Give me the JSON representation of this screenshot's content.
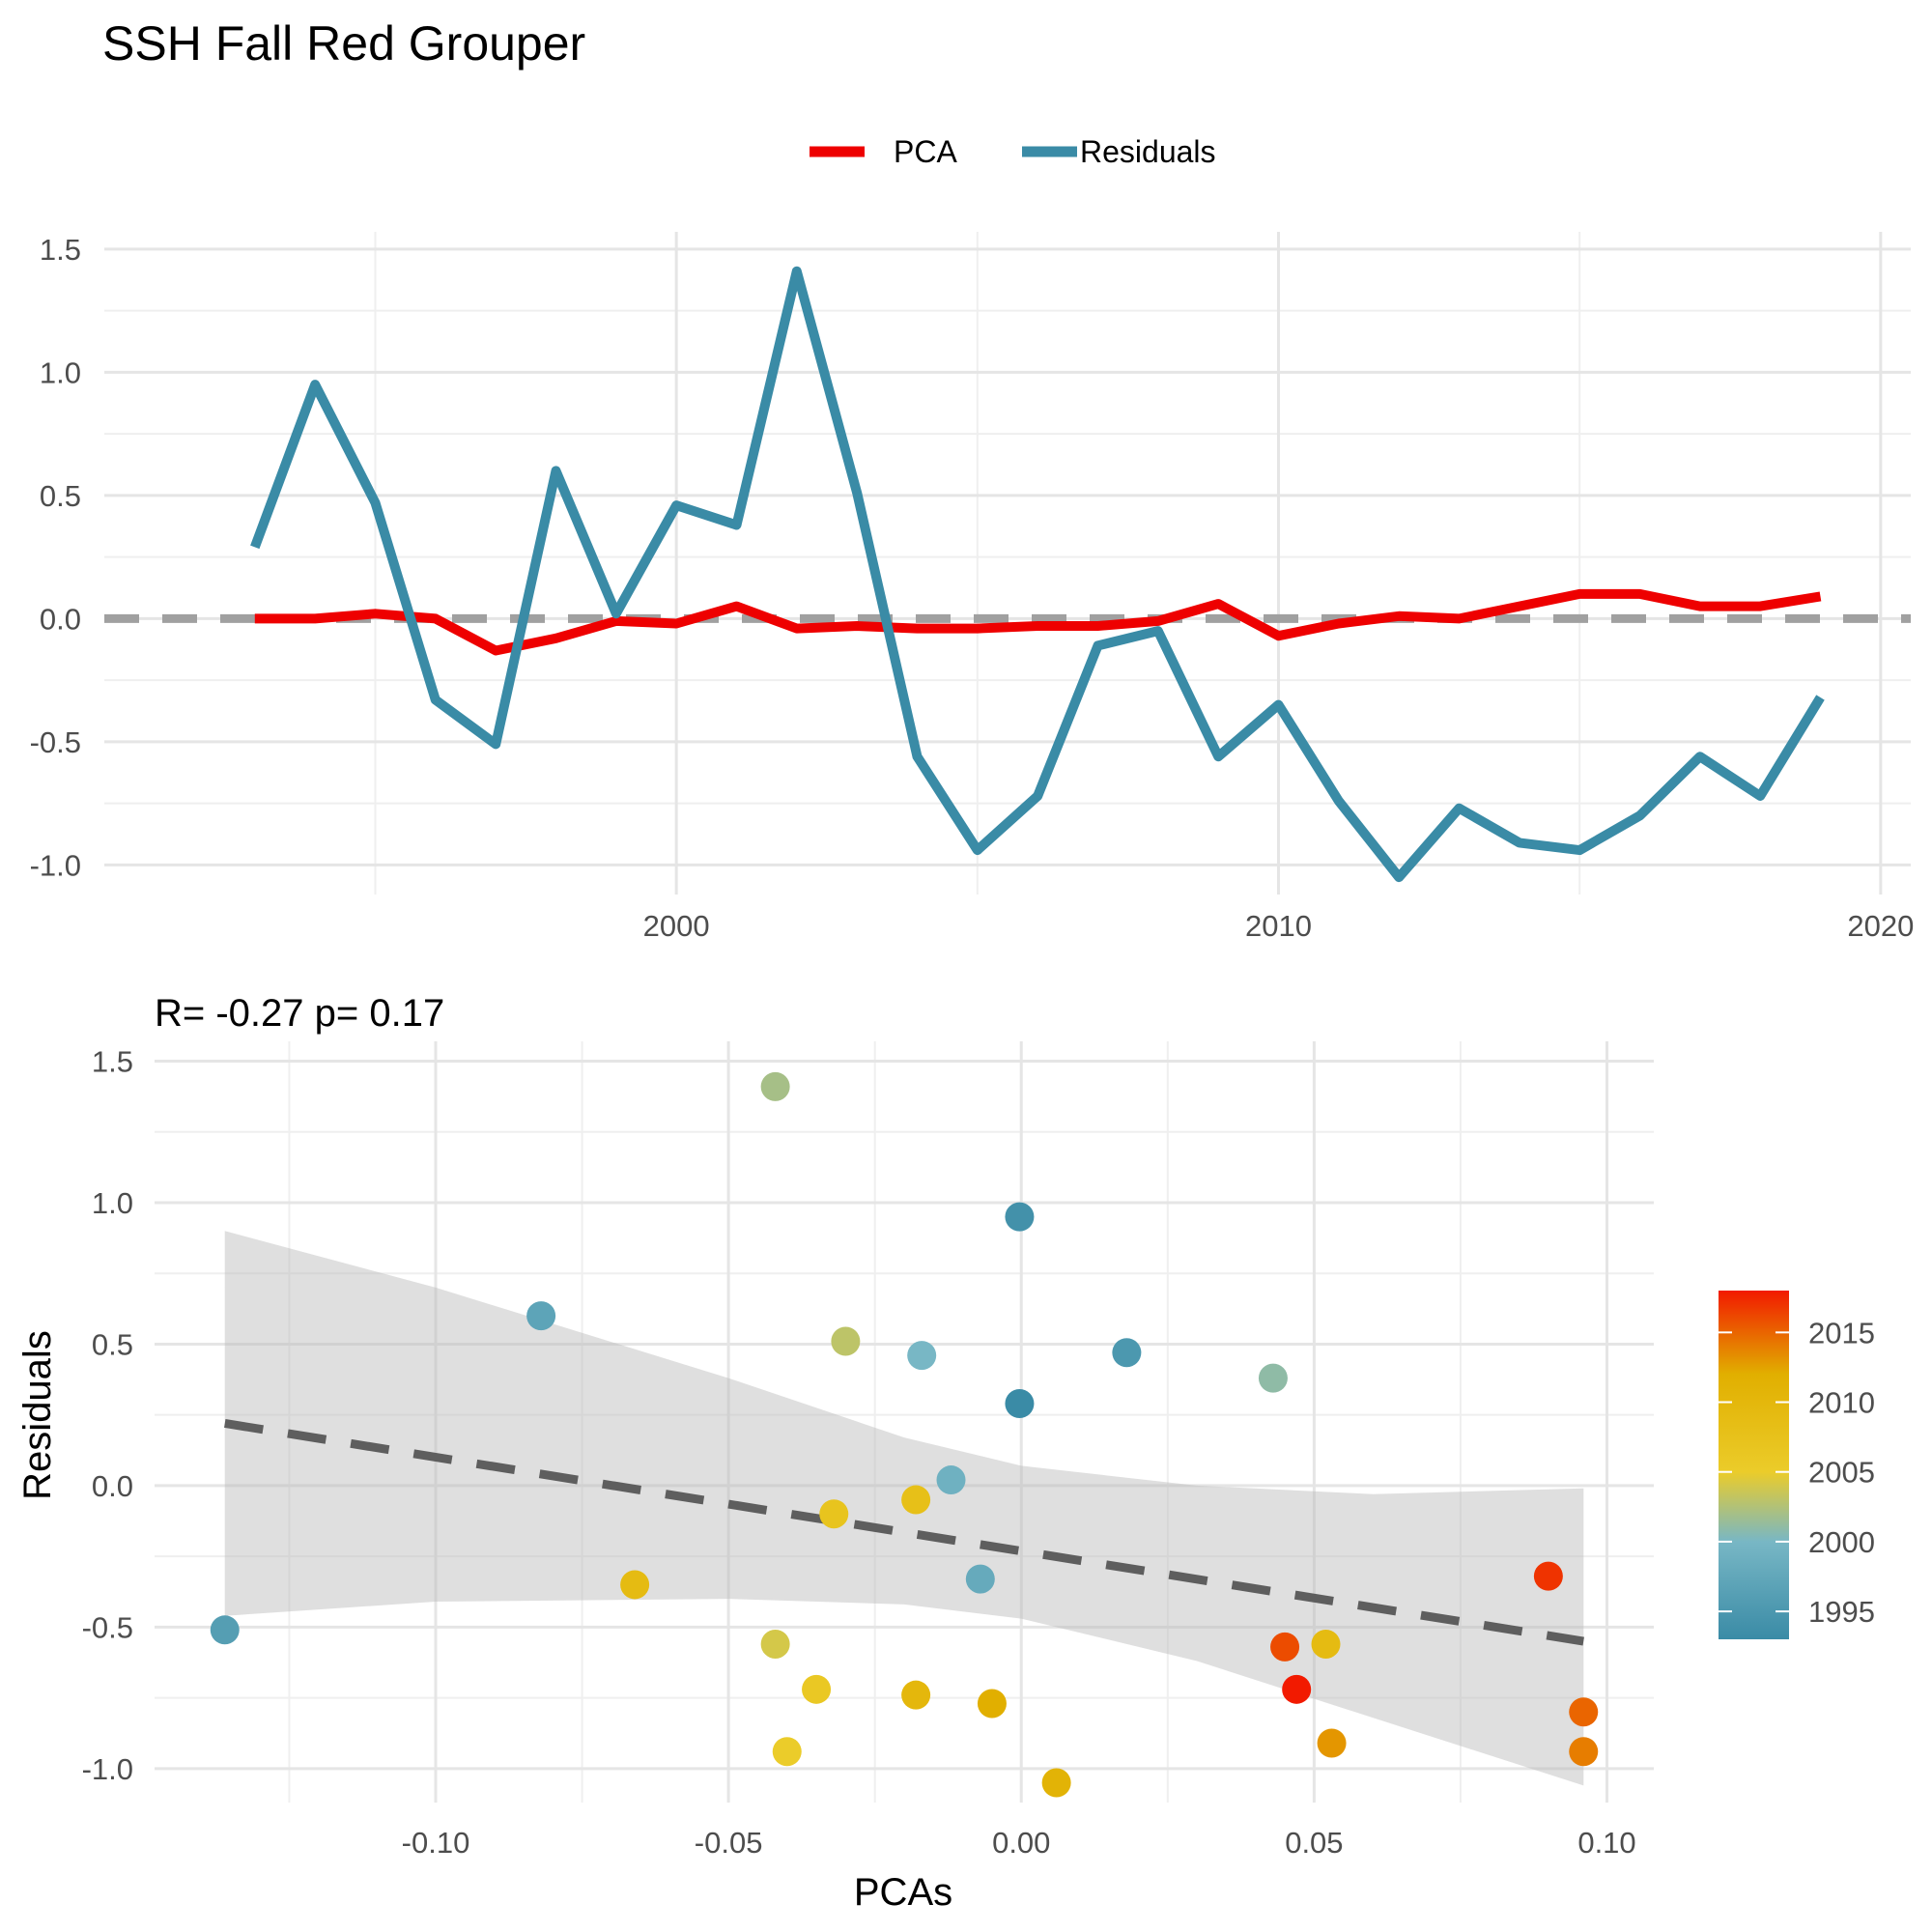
{
  "title": "SSH Fall Red Grouper",
  "legend": {
    "items": [
      {
        "label": "PCA",
        "color": "#ee0000"
      },
      {
        "label": "Residuals",
        "color": "#3a8ba6"
      }
    ]
  },
  "chart_data": [
    {
      "type": "line",
      "x": [
        1993,
        1994,
        1995,
        1996,
        1997,
        1998,
        1999,
        2000,
        2001,
        2002,
        2003,
        2004,
        2005,
        2006,
        2007,
        2008,
        2009,
        2010,
        2011,
        2012,
        2013,
        2014,
        2015,
        2016,
        2017,
        2018,
        2019
      ],
      "series": [
        {
          "name": "PCA",
          "color": "#ee0000",
          "values": [
            0.0,
            0.0,
            0.02,
            0.0,
            -0.13,
            -0.08,
            -0.01,
            -0.02,
            0.05,
            -0.04,
            -0.03,
            -0.04,
            -0.04,
            -0.03,
            -0.03,
            -0.01,
            0.06,
            -0.07,
            -0.02,
            0.01,
            0.0,
            0.05,
            0.1,
            0.1,
            0.05,
            0.05,
            0.09
          ]
        },
        {
          "name": "Residuals",
          "color": "#3a8ba6",
          "values": [
            0.29,
            0.95,
            0.47,
            -0.33,
            -0.51,
            0.6,
            0.02,
            0.46,
            0.38,
            1.41,
            0.51,
            -0.56,
            -0.94,
            -0.72,
            -0.11,
            -0.05,
            -0.56,
            -0.35,
            -0.74,
            -1.05,
            -0.77,
            -0.91,
            -0.94,
            -0.8,
            -0.56,
            -0.72,
            -0.32
          ]
        }
      ],
      "reference_line": 0,
      "xlim": [
        1990.5,
        2020.5
      ],
      "ylim": [
        -1.12,
        1.57
      ],
      "xticks": [
        {
          "value": 2000,
          "label": "2000"
        },
        {
          "value": 2010,
          "label": "2010"
        },
        {
          "value": 2020,
          "label": "2020"
        }
      ],
      "yticks": [
        {
          "value": 1.5,
          "label": "1.5"
        },
        {
          "value": 1.0,
          "label": "1.0"
        },
        {
          "value": 0.5,
          "label": "0.5"
        },
        {
          "value": 0.0,
          "label": "0.0"
        },
        {
          "value": -0.5,
          "label": "-0.5"
        },
        {
          "value": -1.0,
          "label": "-1.0"
        }
      ],
      "grid": true,
      "legend_position": "top"
    },
    {
      "type": "scatter",
      "subtitle": "R= -0.27  p= 0.17",
      "xlabel": "PCAs",
      "ylabel": "Residuals",
      "points": [
        {
          "x": -0.0003,
          "y": 0.29,
          "year": 1993
        },
        {
          "x": -0.0003,
          "y": 0.95,
          "year": 1994
        },
        {
          "x": 0.018,
          "y": 0.47,
          "year": 1995
        },
        {
          "x": -0.136,
          "y": -0.51,
          "year": 1996
        },
        {
          "x": -0.082,
          "y": 0.6,
          "year": 1997
        },
        {
          "x": -0.007,
          "y": -0.33,
          "year": 1998
        },
        {
          "x": -0.012,
          "y": 0.02,
          "year": 1999
        },
        {
          "x": -0.017,
          "y": 0.46,
          "year": 2000
        },
        {
          "x": 0.043,
          "y": 0.38,
          "year": 2001
        },
        {
          "x": -0.042,
          "y": 1.41,
          "year": 2002
        },
        {
          "x": -0.03,
          "y": 0.51,
          "year": 2003
        },
        {
          "x": -0.042,
          "y": -0.56,
          "year": 2004
        },
        {
          "x": -0.04,
          "y": -0.94,
          "year": 2005
        },
        {
          "x": -0.035,
          "y": -0.72,
          "year": 2006
        },
        {
          "x": -0.032,
          "y": -0.1,
          "year": 2007
        },
        {
          "x": -0.018,
          "y": -0.05,
          "year": 2008
        },
        {
          "x": -0.066,
          "y": -0.35,
          "year": 2009
        },
        {
          "x": 0.052,
          "y": -0.56,
          "year": 2009
        },
        {
          "x": -0.018,
          "y": -0.74,
          "year": 2010
        },
        {
          "x": 0.006,
          "y": -1.05,
          "year": 2011
        },
        {
          "x": -0.005,
          "y": -0.77,
          "year": 2012
        },
        {
          "x": 0.053,
          "y": -0.91,
          "year": 2013
        },
        {
          "x": 0.096,
          "y": -0.94,
          "year": 2014
        },
        {
          "x": 0.096,
          "y": -0.8,
          "year": 2015
        },
        {
          "x": 0.045,
          "y": -0.57,
          "year": 2016
        },
        {
          "x": 0.09,
          "y": -0.32,
          "year": 2017
        },
        {
          "x": 0.047,
          "y": -0.72,
          "year": 2018
        }
      ],
      "fit_line": {
        "x": [
          -0.136,
          0.096
        ],
        "y": [
          0.22,
          -0.55
        ]
      },
      "confidence_band": {
        "x": [
          -0.136,
          -0.1,
          -0.05,
          -0.02,
          0.0,
          0.03,
          0.06,
          0.096
        ],
        "upper": [
          0.9,
          0.7,
          0.38,
          0.17,
          0.07,
          0.0,
          -0.03,
          -0.01
        ],
        "lower": [
          -0.46,
          -0.41,
          -0.4,
          -0.42,
          -0.47,
          -0.62,
          -0.82,
          -1.06
        ]
      },
      "xlim": [
        -0.148,
        0.108
      ],
      "ylim": [
        -1.12,
        1.57
      ],
      "xticks": [
        {
          "value": -0.1,
          "label": "-0.10"
        },
        {
          "value": -0.05,
          "label": "-0.05"
        },
        {
          "value": 0.0,
          "label": "0.00"
        },
        {
          "value": 0.05,
          "label": "0.05"
        },
        {
          "value": 0.1,
          "label": "0.10"
        }
      ],
      "yticks": [
        {
          "value": 1.5,
          "label": "1.5"
        },
        {
          "value": 1.0,
          "label": "1.0"
        },
        {
          "value": 0.5,
          "label": "0.5"
        },
        {
          "value": 0.0,
          "label": "0.0"
        },
        {
          "value": -0.5,
          "label": "-0.5"
        },
        {
          "value": -1.0,
          "label": "-1.0"
        }
      ],
      "grid": true,
      "colorbar": {
        "range": [
          1993,
          2018
        ],
        "ticks": [
          {
            "value": 2015,
            "label": "2015"
          },
          {
            "value": 2010,
            "label": "2010"
          },
          {
            "value": 2005,
            "label": "2005"
          },
          {
            "value": 2000,
            "label": "2000"
          },
          {
            "value": 1995,
            "label": "1995"
          }
        ],
        "stops": [
          {
            "value": 1993,
            "color": "#3a8ba6"
          },
          {
            "value": 2000,
            "color": "#78b7c5"
          },
          {
            "value": 2005,
            "color": "#ebcc2a"
          },
          {
            "value": 2012,
            "color": "#e1af00"
          },
          {
            "value": 2018,
            "color": "#f21a00"
          }
        ],
        "legend_position": "right"
      }
    }
  ]
}
